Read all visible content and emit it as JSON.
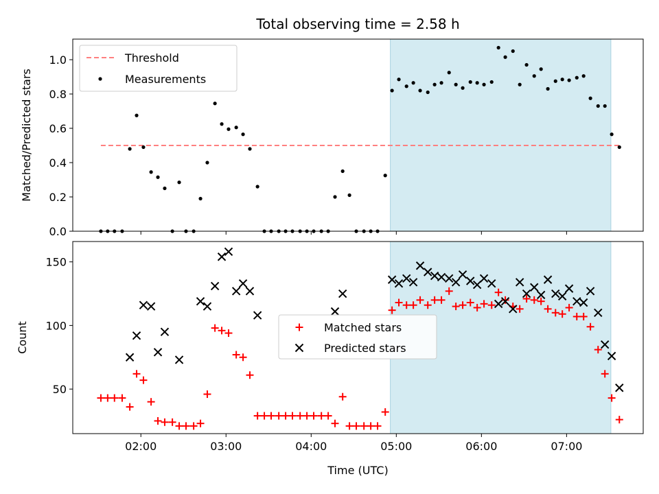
{
  "chart_data": [
    {
      "type": "scatter",
      "title": "Total observing time = 2.58 h",
      "ylabel": "Matched/Predicted stars",
      "xlim": [
        1.2,
        7.9
      ],
      "ylim": [
        0,
        1.12
      ],
      "yticks": [
        0.0,
        0.2,
        0.4,
        0.6,
        0.8,
        1.0
      ],
      "ytick_labels": [
        "0.0",
        "0.2",
        "0.4",
        "0.6",
        "0.8",
        "1.0"
      ],
      "highlight_range": [
        4.93,
        7.52
      ],
      "highlight_color": "#d4ebf2",
      "legend_position": "upper left",
      "series": [
        {
          "name": "Threshold",
          "kind": "dashed-line",
          "color": "#ff7f7f",
          "x": [
            1.53,
            7.62
          ],
          "y": [
            0.5,
            0.5
          ]
        },
        {
          "name": "Measurements",
          "kind": "dot",
          "color": "#000000",
          "x": [
            1.53,
            1.61,
            1.69,
            1.78,
            1.87,
            1.95,
            2.03,
            2.12,
            2.2,
            2.28,
            2.37,
            2.45,
            2.53,
            2.62,
            2.7,
            2.78,
            2.87,
            2.95,
            3.03,
            3.12,
            3.2,
            3.28,
            3.37,
            3.45,
            3.53,
            3.62,
            3.7,
            3.78,
            3.87,
            3.95,
            4.03,
            4.12,
            4.2,
            4.28,
            4.37,
            4.45,
            4.53,
            4.62,
            4.7,
            4.78,
            4.87,
            4.95,
            5.03,
            5.12,
            5.2,
            5.28,
            5.37,
            5.45,
            5.53,
            5.62,
            5.7,
            5.78,
            5.87,
            5.95,
            6.03,
            6.12,
            6.2,
            6.28,
            6.37,
            6.45,
            6.53,
            6.62,
            6.7,
            6.78,
            6.87,
            6.95,
            7.03,
            7.12,
            7.2,
            7.28,
            7.37,
            7.45,
            7.53,
            7.62
          ],
          "y": [
            0,
            0,
            0,
            0,
            0.48,
            0.675,
            0.49,
            0.345,
            0.315,
            0.25,
            0,
            0.285,
            0,
            0,
            0.19,
            0.4,
            0.745,
            0.625,
            0.595,
            0.605,
            0.565,
            0.48,
            0.26,
            0,
            0,
            0,
            0,
            0,
            0,
            0,
            0,
            0,
            0,
            0.2,
            0.35,
            0.21,
            0,
            0,
            0,
            0,
            0.325,
            0.82,
            0.885,
            0.845,
            0.865,
            0.82,
            0.81,
            0.855,
            0.865,
            0.925,
            0.855,
            0.835,
            0.87,
            0.865,
            0.855,
            0.87,
            1.07,
            1.015,
            1.05,
            0.855,
            0.97,
            0.905,
            0.945,
            0.83,
            0.875,
            0.885,
            0.88,
            0.895,
            0.905,
            0.775,
            0.73,
            0.73,
            0.565,
            0.49
          ]
        }
      ]
    },
    {
      "type": "scatter",
      "xlabel": "Time (UTC)",
      "ylabel": "Count",
      "xlim": [
        1.2,
        7.9
      ],
      "ylim": [
        15,
        166
      ],
      "xticks": [
        2,
        3,
        4,
        5,
        6,
        7
      ],
      "xtick_labels": [
        "02:00",
        "03:00",
        "04:00",
        "05:00",
        "06:00",
        "07:00"
      ],
      "yticks": [
        50,
        100,
        150
      ],
      "ytick_labels": [
        "50",
        "100",
        "150"
      ],
      "highlight_range": [
        4.93,
        7.52
      ],
      "highlight_color": "#d4ebf2",
      "legend_position": "center",
      "series": [
        {
          "name": "Matched stars",
          "kind": "plus",
          "color": "#ff0000",
          "x": [
            1.53,
            1.61,
            1.69,
            1.78,
            1.87,
            1.95,
            2.03,
            2.12,
            2.2,
            2.28,
            2.37,
            2.45,
            2.53,
            2.62,
            2.7,
            2.78,
            2.87,
            2.95,
            3.03,
            3.12,
            3.2,
            3.28,
            3.37,
            3.45,
            3.53,
            3.62,
            3.7,
            3.78,
            3.87,
            3.95,
            4.03,
            4.12,
            4.2,
            4.28,
            4.37,
            4.45,
            4.53,
            4.62,
            4.7,
            4.78,
            4.87,
            4.95,
            5.03,
            5.12,
            5.2,
            5.28,
            5.37,
            5.45,
            5.53,
            5.62,
            5.7,
            5.78,
            5.87,
            5.95,
            6.03,
            6.12,
            6.2,
            6.28,
            6.37,
            6.45,
            6.53,
            6.62,
            6.7,
            6.78,
            6.87,
            6.95,
            7.03,
            7.12,
            7.2,
            7.28,
            7.37,
            7.45,
            7.53,
            7.62
          ],
          "y": [
            43,
            43,
            43,
            43,
            36,
            62,
            57,
            40,
            25,
            24,
            24,
            21,
            21,
            21,
            23,
            46,
            98,
            96,
            94,
            77,
            75,
            61,
            29,
            29,
            29,
            29,
            29,
            29,
            29,
            29,
            29,
            29,
            29,
            23,
            44,
            21,
            21,
            21,
            21,
            21,
            32,
            112,
            118,
            116,
            116,
            120,
            116,
            120,
            120,
            127,
            115,
            116,
            118,
            114,
            117,
            116,
            126,
            120,
            115,
            113,
            121,
            120,
            119,
            113,
            110,
            109,
            114,
            107,
            107,
            99,
            81,
            62,
            43,
            26
          ]
        },
        {
          "name": "Predicted stars",
          "kind": "x",
          "color": "#000000",
          "x": [
            1.87,
            1.95,
            2.03,
            2.12,
            2.2,
            2.28,
            2.45,
            2.7,
            2.78,
            2.87,
            2.95,
            3.03,
            3.12,
            3.2,
            3.28,
            3.37,
            4.28,
            4.37,
            4.95,
            5.03,
            5.12,
            5.2,
            5.28,
            5.37,
            5.45,
            5.53,
            5.62,
            5.7,
            5.78,
            5.87,
            5.95,
            6.03,
            6.12,
            6.2,
            6.28,
            6.37,
            6.45,
            6.53,
            6.62,
            6.7,
            6.78,
            6.87,
            6.95,
            7.03,
            7.12,
            7.2,
            7.28,
            7.37,
            7.45,
            7.53,
            7.62
          ],
          "y": [
            75,
            92,
            116,
            115,
            79,
            95,
            73,
            119,
            115,
            131,
            154,
            158,
            127,
            133,
            127,
            108,
            111,
            125,
            136,
            133,
            137,
            134,
            147,
            142,
            139,
            138,
            137,
            134,
            140,
            135,
            132,
            137,
            133,
            117,
            119,
            113,
            134,
            125,
            130,
            124,
            136,
            125,
            123,
            129,
            119,
            118,
            127,
            110,
            85,
            76,
            51
          ]
        }
      ]
    }
  ]
}
